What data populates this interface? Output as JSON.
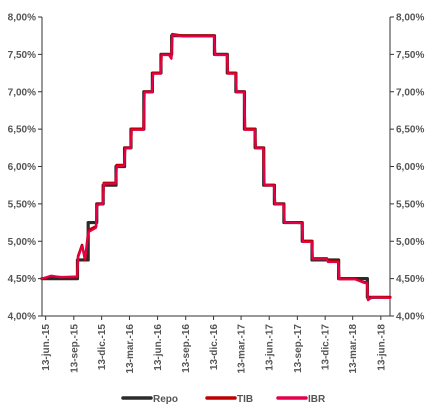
{
  "chart_data": {
    "type": "line",
    "title": "",
    "xlabel": "",
    "ylabel": "",
    "ylim": [
      4.0,
      8.0
    ],
    "y_ticks": [
      "4,00%",
      "4,50%",
      "5,00%",
      "5,50%",
      "6,00%",
      "6,50%",
      "7,00%",
      "7,50%",
      "8,00%"
    ],
    "y_tick_values": [
      4.0,
      4.5,
      5.0,
      5.5,
      6.0,
      6.5,
      7.0,
      7.5,
      8.0
    ],
    "secondary_y_axis": true,
    "x_ticks": [
      "13-jun.-15",
      "13-sep.-15",
      "13-dic.-15",
      "13-mar.-16",
      "13-jun.-16",
      "13-sep.-16",
      "13-dic.-16",
      "13-mar.-17",
      "13-jun.-17",
      "13-sep.-17",
      "13-dic.-17",
      "13-mar.-18",
      "13-jun.-18"
    ],
    "x_tick_dates": [
      "2015-06-13",
      "2015-09-13",
      "2015-12-13",
      "2016-03-13",
      "2016-06-13",
      "2016-09-13",
      "2016-12-13",
      "2017-03-13",
      "2017-06-13",
      "2017-09-13",
      "2017-12-13",
      "2018-03-13",
      "2018-06-13"
    ],
    "xlim": [
      "2015-06-01",
      "2018-07-13"
    ],
    "grid": false,
    "legend_position": "bottom",
    "series": [
      {
        "name": "Repo",
        "color": "#2b2b2b",
        "points": [
          [
            "2015-06-01",
            4.5
          ],
          [
            "2015-09-25",
            4.5
          ],
          [
            "2015-09-25",
            4.75
          ],
          [
            "2015-10-30",
            4.75
          ],
          [
            "2015-10-30",
            5.25
          ],
          [
            "2015-11-27",
            5.25
          ],
          [
            "2015-11-27",
            5.5
          ],
          [
            "2015-12-18",
            5.5
          ],
          [
            "2015-12-18",
            5.75
          ],
          [
            "2016-01-29",
            5.75
          ],
          [
            "2016-01-29",
            6.0
          ],
          [
            "2016-02-26",
            6.0
          ],
          [
            "2016-02-26",
            6.25
          ],
          [
            "2016-03-18",
            6.25
          ],
          [
            "2016-03-18",
            6.5
          ],
          [
            "2016-04-29",
            6.5
          ],
          [
            "2016-04-29",
            7.0
          ],
          [
            "2016-05-27",
            7.0
          ],
          [
            "2016-05-27",
            7.25
          ],
          [
            "2016-06-24",
            7.25
          ],
          [
            "2016-06-24",
            7.5
          ],
          [
            "2016-07-29",
            7.5
          ],
          [
            "2016-07-29",
            7.75
          ],
          [
            "2016-12-16",
            7.75
          ],
          [
            "2016-12-16",
            7.5
          ],
          [
            "2017-01-27",
            7.5
          ],
          [
            "2017-01-27",
            7.25
          ],
          [
            "2017-02-24",
            7.25
          ],
          [
            "2017-02-24",
            7.0
          ],
          [
            "2017-03-24",
            7.0
          ],
          [
            "2017-03-24",
            6.5
          ],
          [
            "2017-04-28",
            6.5
          ],
          [
            "2017-04-28",
            6.25
          ],
          [
            "2017-05-26",
            6.25
          ],
          [
            "2017-05-26",
            5.75
          ],
          [
            "2017-06-30",
            5.75
          ],
          [
            "2017-06-30",
            5.5
          ],
          [
            "2017-07-31",
            5.5
          ],
          [
            "2017-07-31",
            5.25
          ],
          [
            "2017-09-29",
            5.25
          ],
          [
            "2017-09-29",
            5.0
          ],
          [
            "2017-10-31",
            5.0
          ],
          [
            "2017-10-31",
            4.75
          ],
          [
            "2017-12-20",
            4.75
          ],
          [
            "2017-12-20",
            4.75
          ],
          [
            "2018-01-26",
            4.75
          ],
          [
            "2018-01-26",
            4.5
          ],
          [
            "2018-04-30",
            4.5
          ],
          [
            "2018-04-30",
            4.25
          ],
          [
            "2018-07-13",
            4.25
          ]
        ]
      },
      {
        "name": "TIB",
        "color": "#c00000",
        "points": [
          [
            "2015-06-01",
            4.5
          ],
          [
            "2015-07-01",
            4.53
          ],
          [
            "2015-08-01",
            4.52
          ],
          [
            "2015-09-24",
            4.52
          ],
          [
            "2015-09-27",
            4.8
          ],
          [
            "2015-10-10",
            4.95
          ],
          [
            "2015-10-20",
            4.75
          ],
          [
            "2015-10-31",
            5.15
          ],
          [
            "2015-11-25",
            5.2
          ],
          [
            "2015-11-28",
            5.5
          ],
          [
            "2015-12-17",
            5.5
          ],
          [
            "2015-12-20",
            5.78
          ],
          [
            "2016-01-28",
            5.78
          ],
          [
            "2016-01-31",
            6.02
          ],
          [
            "2016-02-25",
            6.02
          ],
          [
            "2016-02-28",
            6.25
          ],
          [
            "2016-03-17",
            6.25
          ],
          [
            "2016-03-20",
            6.5
          ],
          [
            "2016-04-28",
            6.5
          ],
          [
            "2016-05-01",
            7.0
          ],
          [
            "2016-05-26",
            7.0
          ],
          [
            "2016-05-29",
            7.25
          ],
          [
            "2016-06-23",
            7.25
          ],
          [
            "2016-06-26",
            7.5
          ],
          [
            "2016-07-20",
            7.5
          ],
          [
            "2016-07-28",
            7.45
          ],
          [
            "2016-07-31",
            7.77
          ],
          [
            "2016-09-01",
            7.75
          ],
          [
            "2016-12-15",
            7.75
          ],
          [
            "2016-12-18",
            7.5
          ],
          [
            "2017-01-26",
            7.5
          ],
          [
            "2017-01-29",
            7.25
          ],
          [
            "2017-02-23",
            7.25
          ],
          [
            "2017-02-26",
            7.0
          ],
          [
            "2017-03-23",
            7.0
          ],
          [
            "2017-03-26",
            6.5
          ],
          [
            "2017-04-27",
            6.5
          ],
          [
            "2017-04-30",
            6.25
          ],
          [
            "2017-05-25",
            6.25
          ],
          [
            "2017-05-28",
            5.75
          ],
          [
            "2017-06-29",
            5.75
          ],
          [
            "2017-07-02",
            5.5
          ],
          [
            "2017-07-30",
            5.5
          ],
          [
            "2017-08-02",
            5.25
          ],
          [
            "2017-09-28",
            5.25
          ],
          [
            "2017-10-01",
            5.0
          ],
          [
            "2017-10-30",
            5.0
          ],
          [
            "2017-11-02",
            4.77
          ],
          [
            "2017-12-19",
            4.77
          ],
          [
            "2017-12-22",
            4.73
          ],
          [
            "2018-01-25",
            4.73
          ],
          [
            "2018-01-28",
            4.5
          ],
          [
            "2018-03-20",
            4.5
          ],
          [
            "2018-04-20",
            4.45
          ],
          [
            "2018-04-29",
            4.45
          ],
          [
            "2018-05-02",
            4.22
          ],
          [
            "2018-05-15",
            4.25
          ],
          [
            "2018-07-13",
            4.25
          ]
        ]
      },
      {
        "name": "IBR",
        "color": "#e6004c",
        "points": [
          [
            "2015-06-01",
            4.5
          ],
          [
            "2015-07-01",
            4.54
          ],
          [
            "2015-08-01",
            4.52
          ],
          [
            "2015-09-24",
            4.53
          ],
          [
            "2015-09-27",
            4.78
          ],
          [
            "2015-10-10",
            4.93
          ],
          [
            "2015-10-20",
            4.77
          ],
          [
            "2015-10-31",
            5.12
          ],
          [
            "2015-11-25",
            5.18
          ],
          [
            "2015-11-28",
            5.48
          ],
          [
            "2015-12-17",
            5.5
          ],
          [
            "2015-12-20",
            5.77
          ],
          [
            "2016-01-28",
            5.77
          ],
          [
            "2016-01-31",
            6.0
          ],
          [
            "2016-02-25",
            6.01
          ],
          [
            "2016-02-28",
            6.24
          ],
          [
            "2016-03-17",
            6.24
          ],
          [
            "2016-03-20",
            6.49
          ],
          [
            "2016-04-28",
            6.49
          ],
          [
            "2016-05-01",
            6.99
          ],
          [
            "2016-05-26",
            6.99
          ],
          [
            "2016-05-29",
            7.24
          ],
          [
            "2016-06-23",
            7.24
          ],
          [
            "2016-06-26",
            7.49
          ],
          [
            "2016-07-20",
            7.49
          ],
          [
            "2016-07-28",
            7.44
          ],
          [
            "2016-07-31",
            7.76
          ],
          [
            "2016-09-01",
            7.74
          ],
          [
            "2016-12-15",
            7.74
          ],
          [
            "2016-12-18",
            7.49
          ],
          [
            "2017-01-26",
            7.49
          ],
          [
            "2017-01-29",
            7.24
          ],
          [
            "2017-02-23",
            7.24
          ],
          [
            "2017-02-26",
            6.99
          ],
          [
            "2017-03-23",
            6.99
          ],
          [
            "2017-03-26",
            6.49
          ],
          [
            "2017-04-27",
            6.49
          ],
          [
            "2017-04-30",
            6.24
          ],
          [
            "2017-05-25",
            6.24
          ],
          [
            "2017-05-28",
            5.76
          ],
          [
            "2017-06-29",
            5.74
          ],
          [
            "2017-07-02",
            5.5
          ],
          [
            "2017-07-30",
            5.49
          ],
          [
            "2017-08-02",
            5.25
          ],
          [
            "2017-09-28",
            5.24
          ],
          [
            "2017-10-01",
            4.99
          ],
          [
            "2017-10-30",
            4.99
          ],
          [
            "2017-11-02",
            4.76
          ],
          [
            "2017-12-19",
            4.76
          ],
          [
            "2017-12-22",
            4.72
          ],
          [
            "2018-01-25",
            4.72
          ],
          [
            "2018-01-28",
            4.49
          ],
          [
            "2018-03-20",
            4.49
          ],
          [
            "2018-04-20",
            4.44
          ],
          [
            "2018-04-29",
            4.44
          ],
          [
            "2018-05-02",
            4.21
          ],
          [
            "2018-05-15",
            4.25
          ],
          [
            "2018-07-13",
            4.24
          ]
        ]
      }
    ]
  }
}
